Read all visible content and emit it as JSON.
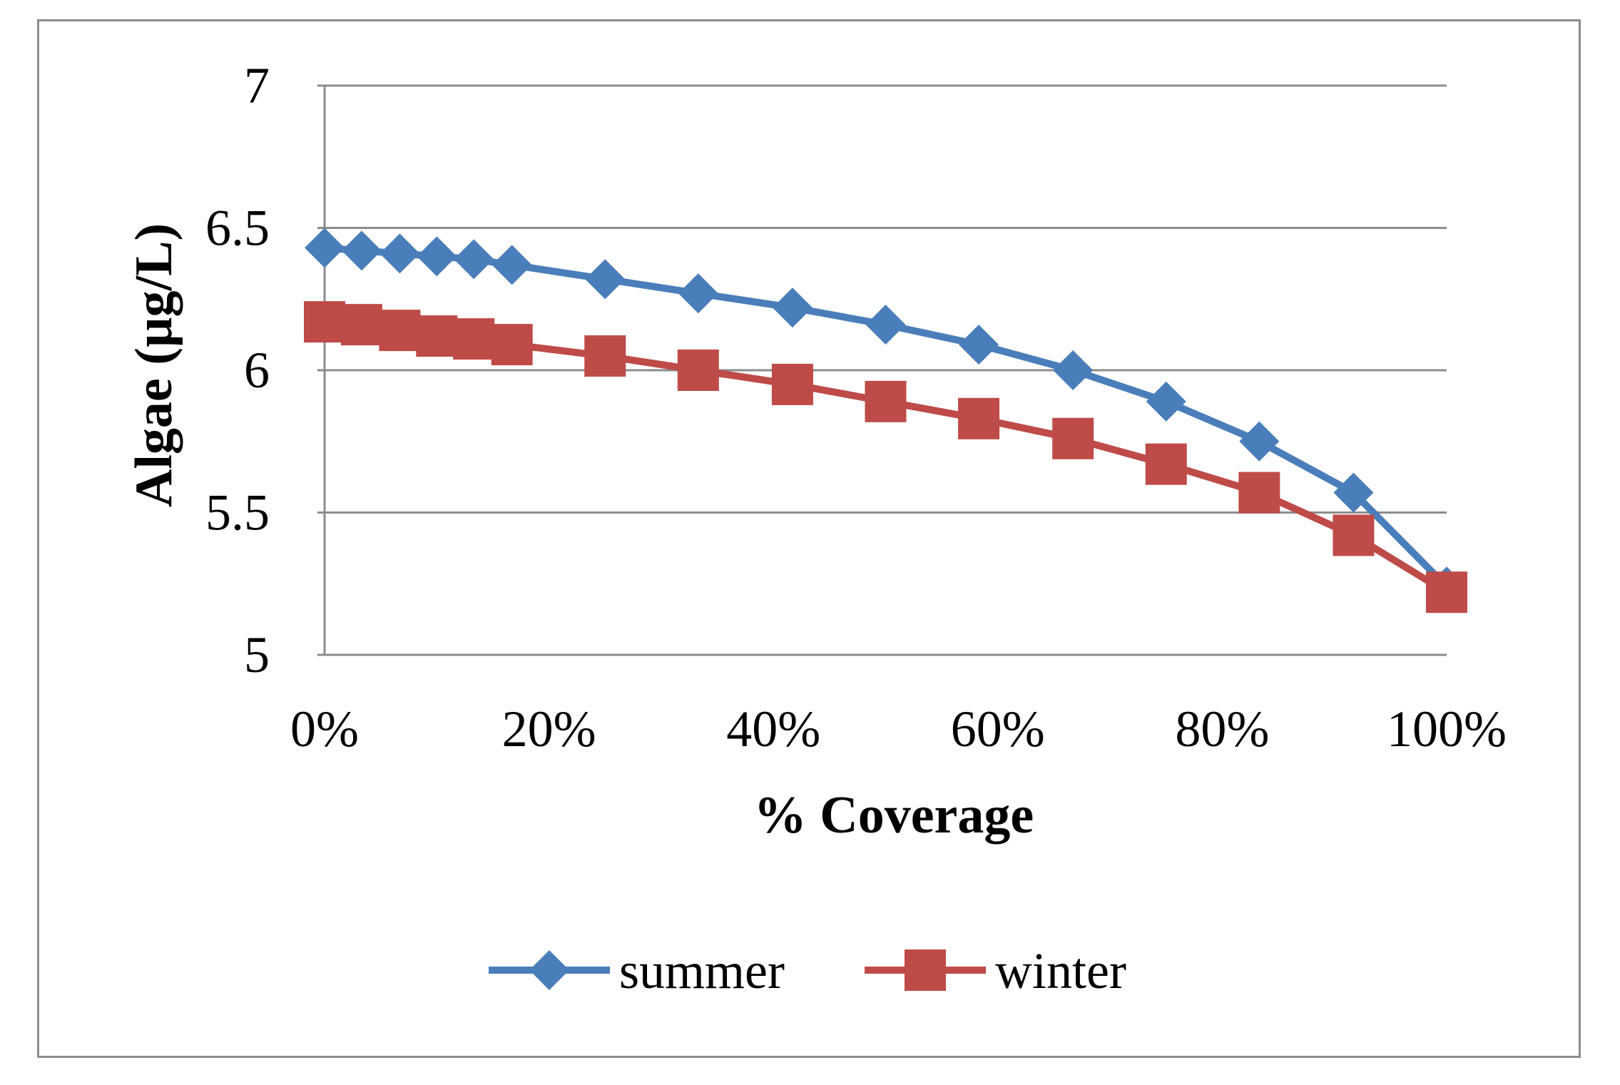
{
  "chart_data": {
    "type": "line",
    "title": "",
    "xlabel": "% Coverage",
    "ylabel": "Algae  (µg/L)",
    "xlim": [
      0,
      100
    ],
    "ylim": [
      5,
      7
    ],
    "x_ticks": [
      "0%",
      "20%",
      "40%",
      "60%",
      "80%",
      "100%"
    ],
    "x_tick_values": [
      0,
      20,
      40,
      60,
      80,
      100
    ],
    "y_ticks": [
      "5",
      "5.5",
      "6",
      "6.5",
      "7"
    ],
    "y_tick_values": [
      5,
      5.5,
      6,
      6.5,
      7
    ],
    "grid": true,
    "legend_position": "bottom",
    "x": [
      0,
      3.3,
      6.7,
      10,
      13.3,
      16.7,
      25,
      33.3,
      41.7,
      50,
      58.3,
      66.7,
      75,
      83.3,
      91.7,
      100
    ],
    "series": [
      {
        "name": "summer",
        "color": "#4a7ebb",
        "marker": "diamond",
        "values": [
          6.43,
          6.42,
          6.41,
          6.4,
          6.39,
          6.37,
          6.32,
          6.27,
          6.22,
          6.16,
          6.09,
          6.0,
          5.89,
          5.75,
          5.57,
          5.24
        ]
      },
      {
        "name": "winter",
        "color": "#be4b48",
        "marker": "square",
        "values": [
          6.17,
          6.16,
          6.14,
          6.12,
          6.11,
          6.09,
          6.05,
          6.0,
          5.95,
          5.89,
          5.83,
          5.76,
          5.67,
          5.57,
          5.42,
          5.22
        ]
      }
    ]
  }
}
